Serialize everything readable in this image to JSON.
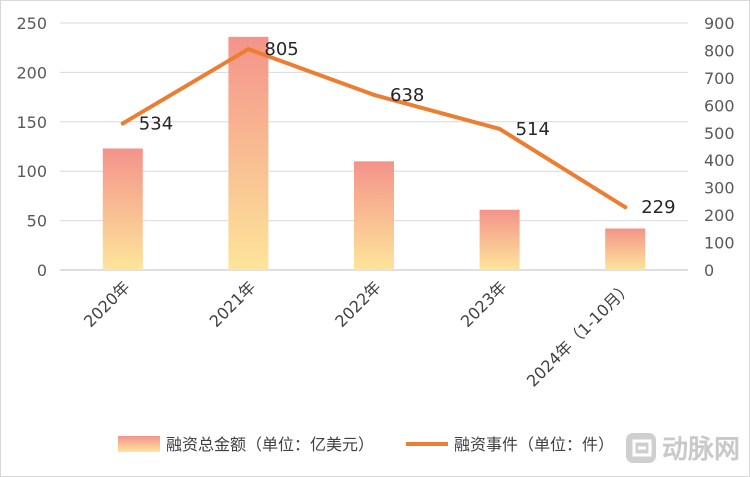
{
  "chart_data": {
    "type": "bar",
    "categories": [
      "2020年",
      "2021年",
      "2022年",
      "2023年",
      "2024年（1-10月）"
    ],
    "series": [
      {
        "name": "融资总金额（单位：亿美元）",
        "type": "bar",
        "axis": "left",
        "values": [
          123,
          236,
          110,
          61,
          42
        ]
      },
      {
        "name": "融资事件（单位：件）",
        "type": "line",
        "axis": "right",
        "values": [
          534,
          805,
          638,
          514,
          229
        ]
      }
    ],
    "ylim_left": [
      0,
      250
    ],
    "yticks_left": [
      "0",
      "50",
      "100",
      "150",
      "200",
      "250"
    ],
    "ylim_right": [
      0,
      900
    ],
    "yticks_right": [
      "0",
      "100",
      "200",
      "300",
      "400",
      "500",
      "600",
      "700",
      "800",
      "900"
    ],
    "grid": true,
    "legend_position": "bottom",
    "colors": {
      "bar_top": "#f4938a",
      "bar_bottom": "#fde59a",
      "line": "#ed7d31",
      "grid": "#d9d9d9"
    }
  },
  "watermark": {
    "icon": "dongmai-logo-icon",
    "text": "动脉网"
  }
}
